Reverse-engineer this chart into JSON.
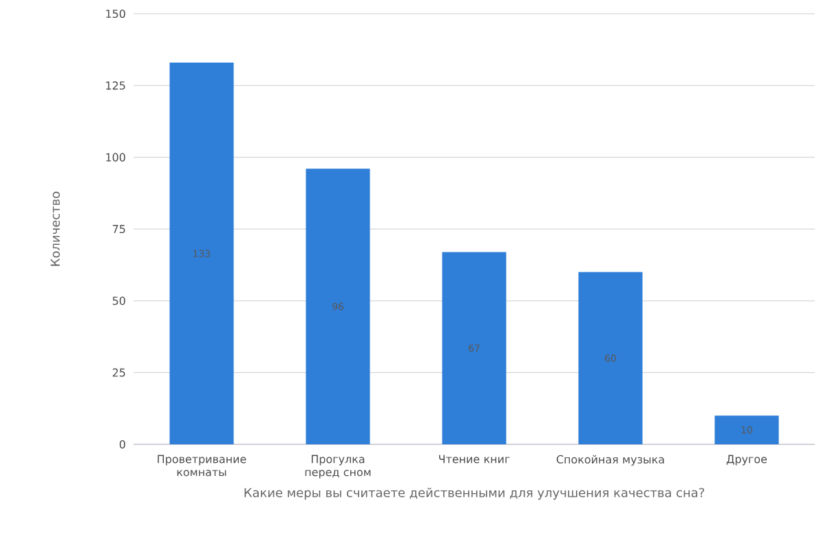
{
  "chart_data": {
    "type": "bar",
    "categories": [
      "Проветривание комнаты",
      "Прогулка перед сном",
      "Чтение книг",
      "Спокойная музыка",
      "Другое"
    ],
    "values": [
      133,
      96,
      67,
      60,
      10
    ],
    "color": "#2f7ed8",
    "xlabel": "Какие меры вы считаете действенными для улучшения качества сна?",
    "ylabel": "Количество",
    "ylim": [
      0,
      150
    ],
    "yticks": [
      0,
      25,
      50,
      75,
      100,
      125,
      150
    ],
    "grid": "y",
    "data_labels": true
  }
}
